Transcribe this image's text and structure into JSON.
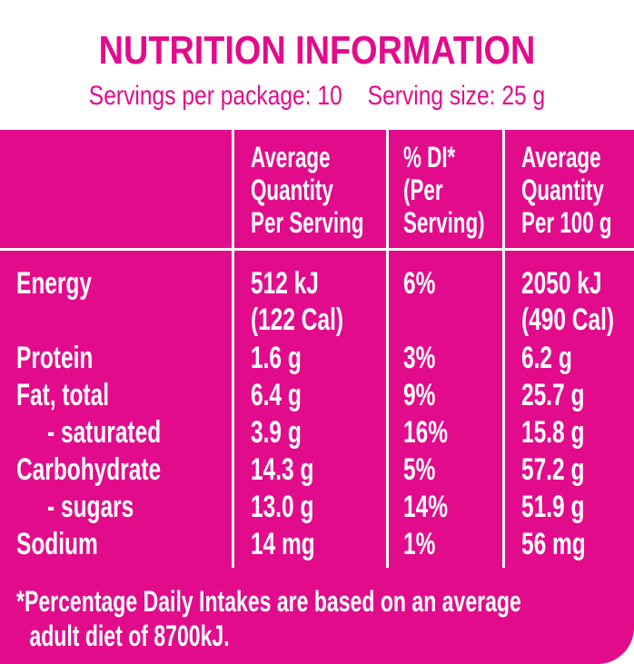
{
  "title": "NUTRITION INFORMATION",
  "servings_per_package": "Servings per package: 10",
  "serving_size": "Serving size: 25 g",
  "colors": {
    "brand_pink": "#e20b8c",
    "text_on_pink": "#ffffff"
  },
  "columns": {
    "per_serving": [
      "Average",
      "Quantity",
      "Per Serving"
    ],
    "di": [
      "% DI*",
      "(Per",
      "Serving)"
    ],
    "per_100g": [
      "Average",
      "Quantity",
      "Per 100 g"
    ]
  },
  "rows": [
    {
      "name": "Energy",
      "serving": "512 kJ",
      "serving2": "(122 Cal)",
      "di": "6%",
      "per100": "2050 kJ",
      "per100_2": "(490 Cal)"
    },
    {
      "name": "Protein",
      "serving": "1.6 g",
      "di": "3%",
      "per100": "6.2 g"
    },
    {
      "name": "Fat, total",
      "serving": "6.4 g",
      "di": "9%",
      "per100": "25.7 g"
    },
    {
      "name": "- saturated",
      "serving": "3.9 g",
      "di": "16%",
      "per100": "15.8 g"
    },
    {
      "name": "Carbohydrate",
      "serving": "14.3 g",
      "di": "5%",
      "per100": "57.2 g"
    },
    {
      "name": "- sugars",
      "serving": "13.0 g",
      "di": "14%",
      "per100": "51.9 g"
    },
    {
      "name": "Sodium",
      "serving": "14 mg",
      "di": "1%",
      "per100": "56 mg"
    }
  ],
  "footnote": {
    "line1": "*Percentage Daily Intakes are based on an average",
    "line2": "adult diet of 8700kJ."
  }
}
